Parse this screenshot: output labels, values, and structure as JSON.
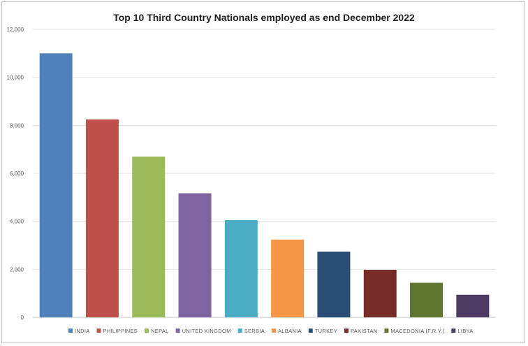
{
  "chart_data": {
    "type": "bar",
    "title": "Top 10 Third Country Nationals employed as end December 2022",
    "categories": [
      "INDIA",
      "PHILIPPINES",
      "NEPAL",
      "UNITED KINGDOM",
      "SERBIA",
      "ALBANIA",
      "TURKEY",
      "PAKISTAN",
      "MACEDONIA (F.R.Y.)",
      "LIBYA"
    ],
    "values": [
      11000,
      8250,
      6700,
      5170,
      4050,
      3240,
      2740,
      1980,
      1440,
      940
    ],
    "colors": [
      "#4f81bd",
      "#c0504d",
      "#9bbb59",
      "#8064a2",
      "#4bacc6",
      "#f79646",
      "#2c4d75",
      "#772c2a",
      "#5f7530",
      "#4d3b62"
    ],
    "yticks": [
      "0",
      "2,000",
      "4,000",
      "6,000",
      "8,000",
      "10,000",
      "12,000"
    ],
    "ylim": [
      0,
      12000
    ],
    "grid": true,
    "legend_position": "bottom"
  }
}
